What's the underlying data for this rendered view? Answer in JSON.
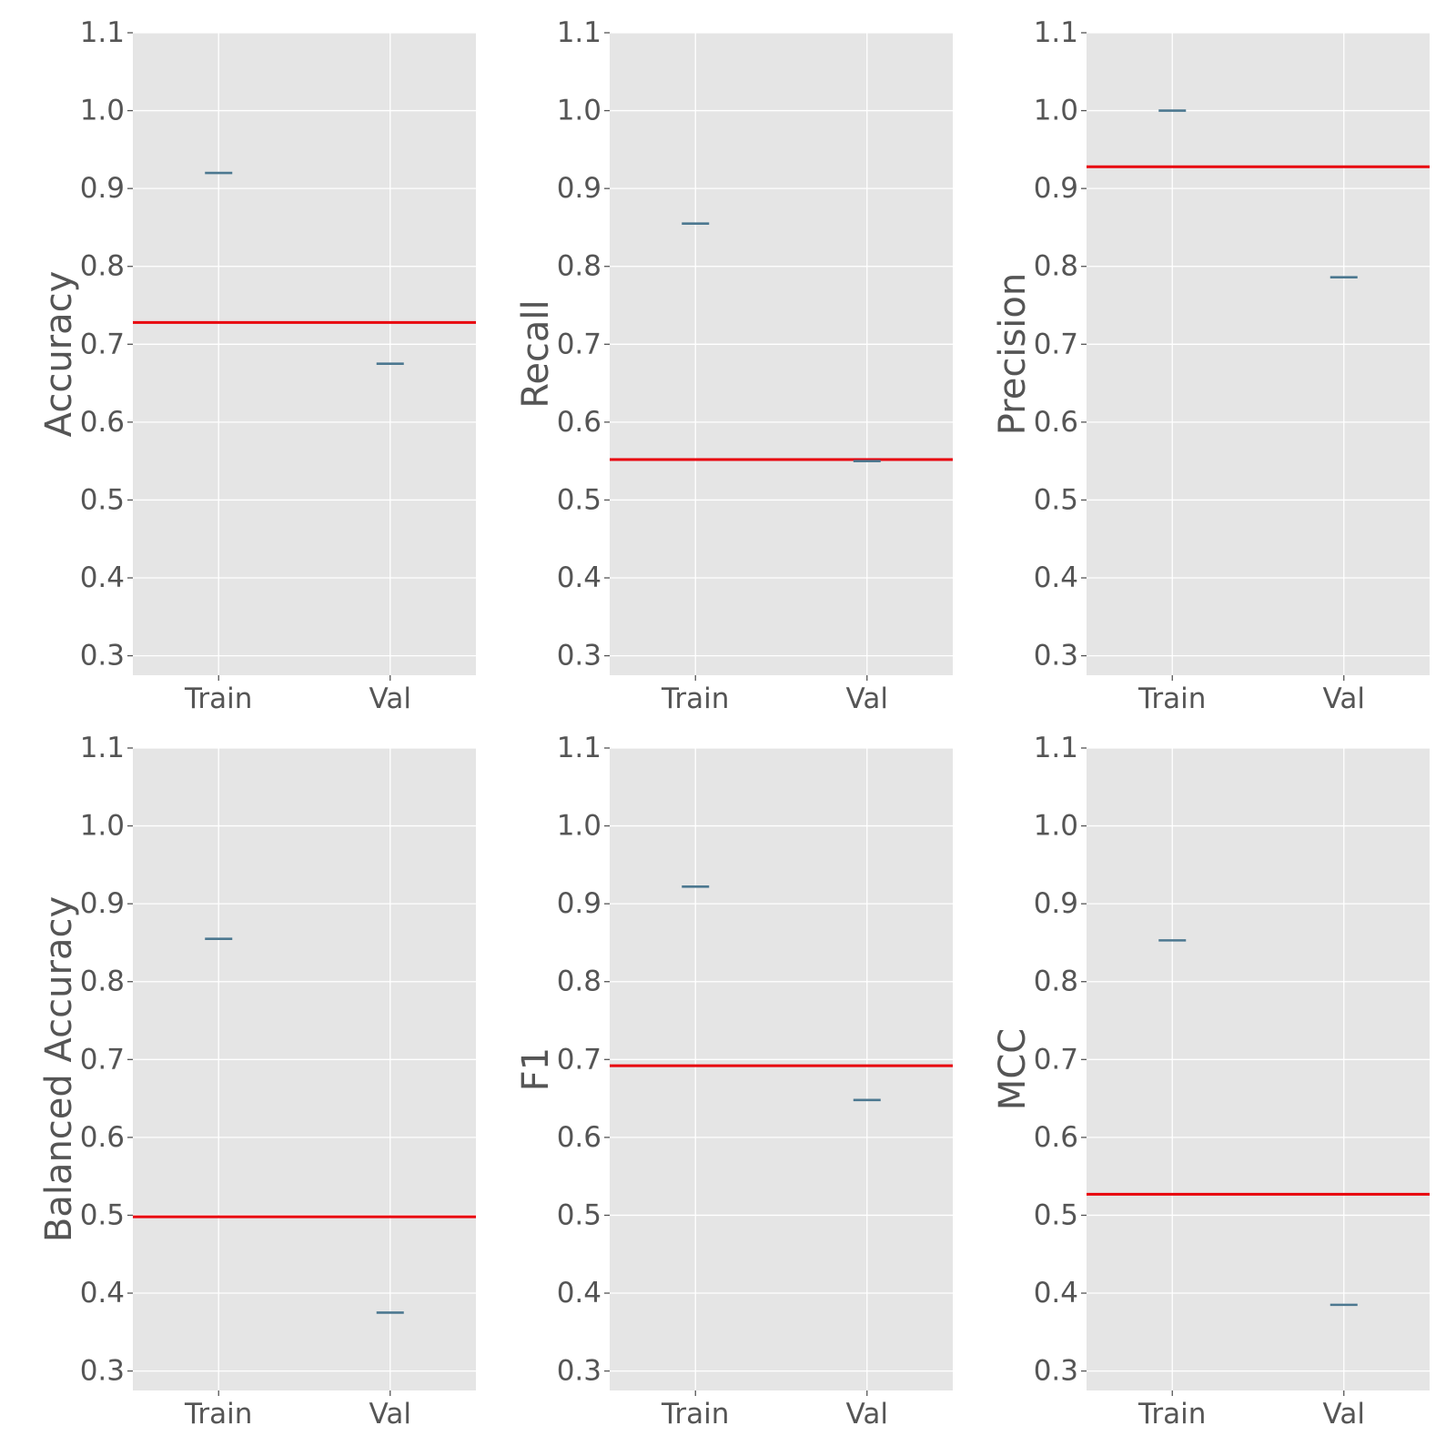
{
  "colors": {
    "background": "#ffffff",
    "plot_background": "#e5e5e5",
    "grid": "#ffffff",
    "text": "#555555",
    "reference_line": "#e8000b",
    "median_line": "#4c7890"
  },
  "chart_data": [
    {
      "type": "box",
      "ylabel": "Accuracy",
      "categories": [
        "Train",
        "Val"
      ],
      "values": [
        0.92,
        0.675
      ],
      "reference_line": 0.728,
      "ylim": [
        0.275,
        1.1
      ],
      "yticks": [
        "0.3",
        "0.4",
        "0.5",
        "0.6",
        "0.7",
        "0.8",
        "0.9",
        "1.0",
        "1.1"
      ],
      "grid": true
    },
    {
      "type": "box",
      "ylabel": "Recall",
      "categories": [
        "Train",
        "Val"
      ],
      "values": [
        0.855,
        0.55
      ],
      "reference_line": 0.552,
      "ylim": [
        0.275,
        1.1
      ],
      "yticks": [
        "0.3",
        "0.4",
        "0.5",
        "0.6",
        "0.7",
        "0.8",
        "0.9",
        "1.0",
        "1.1"
      ],
      "grid": true
    },
    {
      "type": "box",
      "ylabel": "Precision",
      "categories": [
        "Train",
        "Val"
      ],
      "values": [
        1.0,
        0.786
      ],
      "reference_line": 0.928,
      "ylim": [
        0.275,
        1.1
      ],
      "yticks": [
        "0.3",
        "0.4",
        "0.5",
        "0.6",
        "0.7",
        "0.8",
        "0.9",
        "1.0",
        "1.1"
      ],
      "grid": true
    },
    {
      "type": "box",
      "ylabel": "Balanced Accuracy",
      "categories": [
        "Train",
        "Val"
      ],
      "values": [
        0.855,
        0.375
      ],
      "reference_line": 0.498,
      "ylim": [
        0.275,
        1.1
      ],
      "yticks": [
        "0.3",
        "0.4",
        "0.5",
        "0.6",
        "0.7",
        "0.8",
        "0.9",
        "1.0",
        "1.1"
      ],
      "grid": true
    },
    {
      "type": "box",
      "ylabel": "F1",
      "categories": [
        "Train",
        "Val"
      ],
      "values": [
        0.922,
        0.648
      ],
      "reference_line": 0.692,
      "ylim": [
        0.275,
        1.1
      ],
      "yticks": [
        "0.3",
        "0.4",
        "0.5",
        "0.6",
        "0.7",
        "0.8",
        "0.9",
        "1.0",
        "1.1"
      ],
      "grid": true
    },
    {
      "type": "box",
      "ylabel": "MCC",
      "categories": [
        "Train",
        "Val"
      ],
      "values": [
        0.853,
        0.385
      ],
      "reference_line": 0.527,
      "ylim": [
        0.275,
        1.1
      ],
      "yticks": [
        "0.3",
        "0.4",
        "0.5",
        "0.6",
        "0.7",
        "0.8",
        "0.9",
        "1.0",
        "1.1"
      ],
      "grid": true
    }
  ]
}
